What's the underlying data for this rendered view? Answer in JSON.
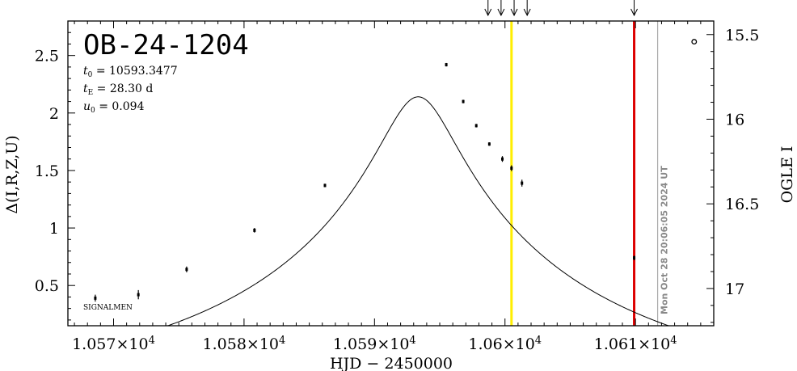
{
  "chart_data": {
    "type": "scatter",
    "title": "OB-24-1204",
    "params": [
      {
        "sym": "t",
        "sub": "0",
        "text": " = 10593.3477"
      },
      {
        "sym": "t",
        "sub": "E",
        "text": " = 28.30  d"
      },
      {
        "sym": "u",
        "sub": "0",
        "text": " = 0.094"
      }
    ],
    "xlabel": "HJD  −  2450000",
    "ylabel_left": "Δ(I,R,Z,U)",
    "ylabel_right": "OGLE I",
    "xlim": [
      10566.5,
      10616
    ],
    "ylim_left": [
      0.15,
      2.8
    ],
    "ylim_right": [
      17.22,
      15.42
    ],
    "x_ticks": [
      {
        "value": 10570,
        "mant": "1.057×10",
        "exp": "4"
      },
      {
        "value": 10580,
        "mant": "1.058×10",
        "exp": "4"
      },
      {
        "value": 10590,
        "mant": "1.059×10",
        "exp": "4"
      },
      {
        "value": 10600,
        "mant": "1.06×10",
        "exp": "4"
      },
      {
        "value": 10610,
        "mant": "1.061×10",
        "exp": "4"
      }
    ],
    "y_ticks_left": [
      {
        "value": 0.5,
        "label": "0.5"
      },
      {
        "value": 1,
        "label": "1"
      },
      {
        "value": 1.5,
        "label": "1.5"
      },
      {
        "value": 2,
        "label": "2"
      },
      {
        "value": 2.5,
        "label": "2.5"
      }
    ],
    "y_ticks_right": [
      {
        "value": 15.5,
        "label": "15.5"
      },
      {
        "value": 16,
        "label": "16"
      },
      {
        "value": 16.5,
        "label": "16.5"
      },
      {
        "value": 17,
        "label": "17"
      }
    ],
    "model": {
      "t0": 10593.3477,
      "tE": 28.3,
      "u0": 0.094,
      "offset": -0.43
    },
    "points": [
      {
        "x": 10568.6,
        "y": 0.39,
        "err": 0.03
      },
      {
        "x": 10571.9,
        "y": 0.42,
        "err": 0.04
      },
      {
        "x": 10575.6,
        "y": 0.64,
        "err": 0.025
      },
      {
        "x": 10580.8,
        "y": 0.98,
        "err": 0.02
      },
      {
        "x": 10586.2,
        "y": 1.37,
        "err": 0.015
      },
      {
        "x": 10595.5,
        "y": 2.42,
        "err": 0.015
      },
      {
        "x": 10596.8,
        "y": 2.1,
        "err": 0.015
      },
      {
        "x": 10597.8,
        "y": 1.89,
        "err": 0.015
      },
      {
        "x": 10598.8,
        "y": 1.73,
        "err": 0.015
      },
      {
        "x": 10599.8,
        "y": 1.6,
        "err": 0.025
      },
      {
        "x": 10600.5,
        "y": 1.52,
        "err": 0.025
      },
      {
        "x": 10601.3,
        "y": 1.39,
        "err": 0.03
      },
      {
        "x": 10609.9,
        "y": 0.74,
        "err": 0.02
      }
    ],
    "open_points": [
      {
        "x": 10614.5,
        "y": 2.62
      }
    ],
    "arrows_x": [
      10598.7,
      10599.7,
      10600.7,
      10601.7,
      10609.9
    ],
    "vlines": [
      {
        "x": 10600.5,
        "color": "#ffee00"
      },
      {
        "x": 10609.9,
        "color": "#dd0000"
      },
      {
        "x": 10611.7,
        "color": "#aaaaaa"
      }
    ],
    "timestamp": "Mon Oct 28 20:06:05 2024 UT",
    "note": "SIGNALMEN"
  }
}
